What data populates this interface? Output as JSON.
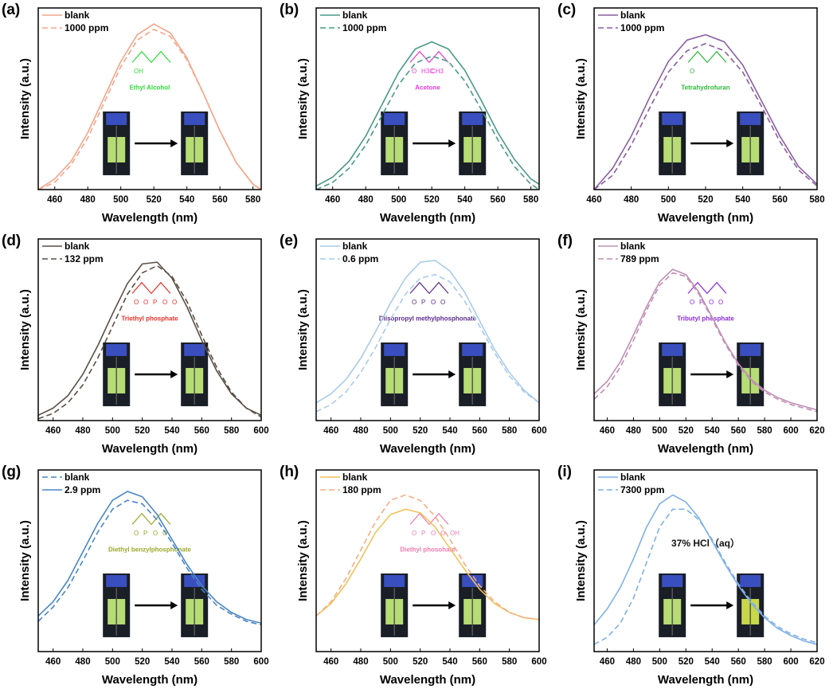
{
  "chart_data": [
    {
      "id": "a",
      "panel_label": "(a)",
      "type": "line",
      "xlabel": "Wavelength (nm)",
      "ylabel": "Intensity (a.u.)",
      "xlim": [
        450,
        585
      ],
      "xticks": [
        460,
        480,
        500,
        520,
        540,
        560,
        580
      ],
      "ylim": [
        0,
        1
      ],
      "grid": false,
      "legend_placement": "top-left",
      "x": [
        450,
        460,
        470,
        480,
        490,
        500,
        510,
        520,
        530,
        540,
        550,
        560,
        570,
        580,
        585
      ],
      "series": [
        {
          "name": "blank",
          "style": "solid",
          "color": "#f4a58a",
          "values": [
            0,
            0.06,
            0.16,
            0.32,
            0.52,
            0.72,
            0.87,
            0.93,
            0.88,
            0.74,
            0.54,
            0.33,
            0.15,
            0.03,
            0
          ]
        },
        {
          "name": "1000 ppm",
          "style": "dashed",
          "color": "#f4a58a",
          "values": [
            0,
            0.04,
            0.14,
            0.29,
            0.49,
            0.69,
            0.84,
            0.9,
            0.86,
            0.73,
            0.54,
            0.33,
            0.15,
            0.03,
            0
          ]
        }
      ],
      "annotation": {
        "compound": "Ethyl Alcohol",
        "atoms": [
          "OH"
        ],
        "color": "#2fdc3a"
      }
    },
    {
      "id": "b",
      "panel_label": "(b)",
      "type": "line",
      "xlabel": "Wavelength (nm)",
      "ylabel": "Intensity (a.u.)",
      "xlim": [
        450,
        585
      ],
      "xticks": [
        460,
        480,
        500,
        520,
        540,
        560,
        580
      ],
      "ylim": [
        0,
        1
      ],
      "grid": false,
      "legend_placement": "top-left",
      "x": [
        450,
        460,
        470,
        480,
        490,
        500,
        510,
        520,
        530,
        540,
        550,
        560,
        570,
        580,
        585
      ],
      "series": [
        {
          "name": "blank",
          "style": "solid",
          "color": "#4a9a85",
          "values": [
            0.02,
            0.07,
            0.16,
            0.3,
            0.48,
            0.66,
            0.79,
            0.83,
            0.79,
            0.67,
            0.5,
            0.32,
            0.17,
            0.06,
            0.03
          ]
        },
        {
          "name": "1000 ppm",
          "style": "dashed",
          "color": "#4a9a85",
          "values": [
            0,
            0.04,
            0.12,
            0.25,
            0.42,
            0.59,
            0.71,
            0.75,
            0.72,
            0.61,
            0.45,
            0.28,
            0.13,
            0.03,
            0
          ]
        }
      ],
      "annotation": {
        "compound": "Acetone",
        "atoms": [
          "O",
          "H3C",
          "CH3"
        ],
        "color": "#e83ad8"
      }
    },
    {
      "id": "c",
      "panel_label": "(c)",
      "type": "line",
      "xlabel": "Wavelength (nm)",
      "ylabel": "Intensity (a.u.)",
      "xlim": [
        460,
        580
      ],
      "xticks": [
        460,
        480,
        500,
        520,
        540,
        560,
        580
      ],
      "ylim": [
        0,
        1
      ],
      "grid": false,
      "legend_placement": "top-left",
      "x": [
        460,
        470,
        480,
        490,
        500,
        510,
        520,
        530,
        540,
        550,
        560,
        570,
        580
      ],
      "series": [
        {
          "name": "blank",
          "style": "solid",
          "color": "#8a5fa0",
          "values": [
            0,
            0.12,
            0.3,
            0.52,
            0.72,
            0.84,
            0.87,
            0.83,
            0.7,
            0.5,
            0.3,
            0.13,
            0.03
          ]
        },
        {
          "name": "1000 ppm",
          "style": "dashed",
          "color": "#8a5fa0",
          "values": [
            0,
            0.08,
            0.25,
            0.46,
            0.66,
            0.78,
            0.82,
            0.78,
            0.66,
            0.47,
            0.27,
            0.11,
            0.02
          ]
        }
      ],
      "annotation": {
        "compound": "Tetrahydrofuran",
        "atoms": [
          "O"
        ],
        "color": "#2fb83a"
      }
    },
    {
      "id": "d",
      "panel_label": "(d)",
      "type": "line",
      "xlabel": "Wavelength (nm)",
      "ylabel": "Intensity (a.u.)",
      "xlim": [
        450,
        600
      ],
      "xticks": [
        460,
        480,
        500,
        520,
        540,
        560,
        580,
        600
      ],
      "ylim": [
        0,
        1
      ],
      "grid": false,
      "legend_placement": "top-left",
      "x": [
        450,
        460,
        470,
        480,
        490,
        500,
        510,
        520,
        530,
        540,
        550,
        560,
        570,
        580,
        590,
        600
      ],
      "series": [
        {
          "name": "blank",
          "style": "solid",
          "color": "#5a4f45",
          "values": [
            0.03,
            0.07,
            0.14,
            0.26,
            0.42,
            0.6,
            0.77,
            0.88,
            0.89,
            0.8,
            0.64,
            0.45,
            0.28,
            0.15,
            0.07,
            0.03
          ]
        },
        {
          "name": "132 ppm",
          "style": "dashed",
          "color": "#5a4f45",
          "values": [
            0.01,
            0.04,
            0.1,
            0.2,
            0.35,
            0.53,
            0.71,
            0.83,
            0.87,
            0.81,
            0.67,
            0.48,
            0.3,
            0.16,
            0.07,
            0.02
          ]
        }
      ],
      "annotation": {
        "compound": "Triethyl phosphate",
        "atoms": [
          "O",
          "O",
          "P",
          "O",
          "O"
        ],
        "color": "#e8312a"
      }
    },
    {
      "id": "e",
      "panel_label": "(e)",
      "type": "line",
      "xlabel": "Wavelength (nm)",
      "ylabel": "Intensity (a.u.)",
      "xlim": [
        450,
        600
      ],
      "xticks": [
        460,
        480,
        500,
        520,
        540,
        560,
        580,
        600
      ],
      "ylim": [
        0,
        1
      ],
      "grid": false,
      "legend_placement": "top-left",
      "x": [
        450,
        460,
        470,
        480,
        490,
        500,
        510,
        520,
        530,
        540,
        550,
        560,
        570,
        580,
        590,
        600
      ],
      "series": [
        {
          "name": "blank",
          "style": "solid",
          "color": "#a9cbe8",
          "values": [
            0.1,
            0.15,
            0.23,
            0.35,
            0.5,
            0.66,
            0.8,
            0.89,
            0.9,
            0.84,
            0.72,
            0.56,
            0.4,
            0.27,
            0.17,
            0.1
          ]
        },
        {
          "name": "0.6 ppm",
          "style": "dashed",
          "color": "#a9cbe8",
          "values": [
            0.05,
            0.09,
            0.16,
            0.27,
            0.41,
            0.57,
            0.71,
            0.8,
            0.82,
            0.78,
            0.67,
            0.53,
            0.38,
            0.25,
            0.16,
            0.1
          ]
        }
      ],
      "annotation": {
        "compound": "Diisopropyl methylphosphonate",
        "atoms": [
          "O",
          "P",
          "O",
          "O"
        ],
        "color": "#5a2a8a"
      }
    },
    {
      "id": "f",
      "panel_label": "(f)",
      "type": "line",
      "xlabel": "Wavelength (nm)",
      "ylabel": "Intensity (a.u.)",
      "xlim": [
        450,
        620
      ],
      "xticks": [
        460,
        480,
        500,
        520,
        540,
        560,
        580,
        600,
        620
      ],
      "ylim": [
        0,
        1
      ],
      "grid": false,
      "legend_placement": "top-left",
      "x": [
        450,
        460,
        470,
        480,
        490,
        500,
        510,
        520,
        530,
        540,
        550,
        560,
        570,
        580,
        590,
        600,
        610,
        620
      ],
      "series": [
        {
          "name": "blank",
          "style": "solid",
          "color": "#c08fb5",
          "values": [
            0.15,
            0.22,
            0.33,
            0.48,
            0.64,
            0.78,
            0.85,
            0.82,
            0.72,
            0.58,
            0.44,
            0.32,
            0.23,
            0.17,
            0.13,
            0.1,
            0.08,
            0.06
          ]
        },
        {
          "name": "789 ppm",
          "style": "dashed",
          "color": "#c08fb5",
          "values": [
            0.12,
            0.19,
            0.3,
            0.45,
            0.62,
            0.76,
            0.83,
            0.81,
            0.71,
            0.57,
            0.43,
            0.31,
            0.22,
            0.16,
            0.12,
            0.09,
            0.07,
            0.05
          ]
        }
      ],
      "annotation": {
        "compound": "Tributyl phosphate",
        "atoms": [
          "O",
          "P",
          "O",
          "O"
        ],
        "color": "#8a2ad8"
      }
    },
    {
      "id": "g",
      "panel_label": "(g)",
      "type": "line",
      "xlabel": "Wavelength (nm)",
      "ylabel": "Intensity (a.u.)",
      "xlim": [
        450,
        600
      ],
      "xticks": [
        460,
        480,
        500,
        520,
        540,
        560,
        580,
        600
      ],
      "ylim": [
        0,
        1
      ],
      "grid": false,
      "legend_placement": "top-left",
      "x": [
        450,
        460,
        470,
        480,
        490,
        500,
        510,
        520,
        530,
        540,
        550,
        560,
        570,
        580,
        590,
        600
      ],
      "series": [
        {
          "name": "blank",
          "style": "dashed",
          "color": "#4a86c5",
          "values": [
            0.17,
            0.25,
            0.36,
            0.51,
            0.67,
            0.8,
            0.85,
            0.83,
            0.74,
            0.61,
            0.47,
            0.35,
            0.26,
            0.21,
            0.17,
            0.15
          ]
        },
        {
          "name": "2.9 ppm",
          "style": "solid",
          "color": "#4a86c5",
          "values": [
            0.2,
            0.28,
            0.4,
            0.56,
            0.72,
            0.85,
            0.9,
            0.87,
            0.77,
            0.63,
            0.49,
            0.37,
            0.28,
            0.22,
            0.18,
            0.16
          ]
        }
      ],
      "annotation": {
        "compound": "Diethyl benzylphosphonate",
        "atoms": [
          "O",
          "P",
          "O",
          "O"
        ],
        "color": "#9aa82a"
      }
    },
    {
      "id": "h",
      "panel_label": "(h)",
      "type": "line",
      "xlabel": "Wavelength (nm)",
      "ylabel": "Intensity (a.u.)",
      "xlim": [
        450,
        600
      ],
      "xticks": [
        460,
        480,
        500,
        520,
        540,
        560,
        580,
        600
      ],
      "ylim": [
        0,
        1
      ],
      "grid": false,
      "legend_placement": "top-left",
      "x": [
        450,
        460,
        470,
        480,
        490,
        500,
        510,
        520,
        530,
        540,
        550,
        560,
        570,
        580,
        590,
        600
      ],
      "series": [
        {
          "name": "blank",
          "style": "solid",
          "color": "#f2c25a",
          "values": [
            0.2,
            0.27,
            0.38,
            0.52,
            0.67,
            0.77,
            0.8,
            0.78,
            0.7,
            0.58,
            0.46,
            0.35,
            0.27,
            0.22,
            0.19,
            0.18
          ]
        },
        {
          "name": "180 ppm",
          "style": "dashed",
          "color": "#f4ae86",
          "values": [
            0.2,
            0.28,
            0.41,
            0.57,
            0.73,
            0.85,
            0.88,
            0.85,
            0.76,
            0.63,
            0.49,
            0.37,
            0.28,
            0.22,
            0.19,
            0.18
          ]
        }
      ],
      "annotation": {
        "compound": "Diethyl phosohate",
        "atoms": [
          "O",
          "P",
          "O",
          "O",
          "OH"
        ],
        "color": "#f07ab0"
      }
    },
    {
      "id": "i",
      "panel_label": "(i)",
      "type": "line",
      "xlabel": "Wavelength (nm)",
      "ylabel": "Intensity (a.u.)",
      "xlim": [
        450,
        620
      ],
      "xticks": [
        460,
        480,
        500,
        520,
        540,
        560,
        580,
        600,
        620
      ],
      "ylim": [
        0,
        1
      ],
      "grid": false,
      "legend_placement": "top-left",
      "x": [
        450,
        460,
        470,
        480,
        490,
        500,
        510,
        520,
        530,
        540,
        550,
        560,
        570,
        580,
        590,
        600,
        610,
        620
      ],
      "series": [
        {
          "name": "blank",
          "style": "solid",
          "color": "#7fb0e8",
          "values": [
            0.15,
            0.24,
            0.36,
            0.52,
            0.7,
            0.83,
            0.88,
            0.84,
            0.75,
            0.62,
            0.49,
            0.37,
            0.27,
            0.19,
            0.13,
            0.09,
            0.06,
            0.04
          ]
        },
        {
          "name": "7300 ppm",
          "style": "dashed",
          "color": "#7fb0e8",
          "values": [
            0.04,
            0.08,
            0.16,
            0.3,
            0.5,
            0.7,
            0.8,
            0.8,
            0.74,
            0.63,
            0.5,
            0.38,
            0.28,
            0.2,
            0.14,
            0.1,
            0.07,
            0.05
          ]
        }
      ],
      "annotation": {
        "compound": "37% HCl（aq）",
        "atoms": [],
        "color": "#111111"
      }
    }
  ]
}
